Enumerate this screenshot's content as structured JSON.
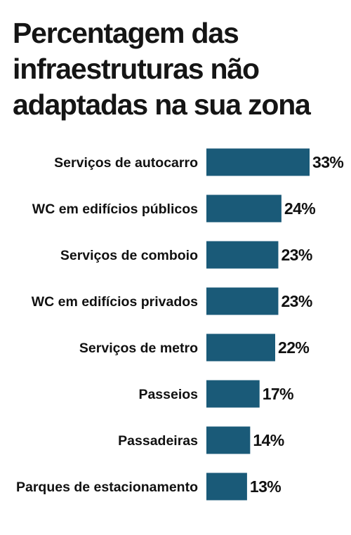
{
  "colors": {
    "bar": "#1a5a78",
    "text": "#151515",
    "background": "#ffffff"
  },
  "chart_data": {
    "type": "bar",
    "orientation": "horizontal",
    "title_lines": [
      "Percentagem das",
      "infraestruturas não",
      "adaptadas na sua zona"
    ],
    "categories": [
      "Serviços de autocarro",
      "WC em edifícios públicos",
      "Serviços de comboio",
      "WC em edifícios privados",
      "Serviços de metro",
      "Passeios",
      "Passadeiras",
      "Parques de estacionamento"
    ],
    "values": [
      33,
      24,
      23,
      23,
      22,
      17,
      14,
      13
    ],
    "value_labels": [
      "33%",
      "24%",
      "23%",
      "23%",
      "22%",
      "17%",
      "14%",
      "13%"
    ],
    "unit": "%",
    "xlim": [
      0,
      33
    ],
    "grid": false,
    "legend": "none"
  }
}
